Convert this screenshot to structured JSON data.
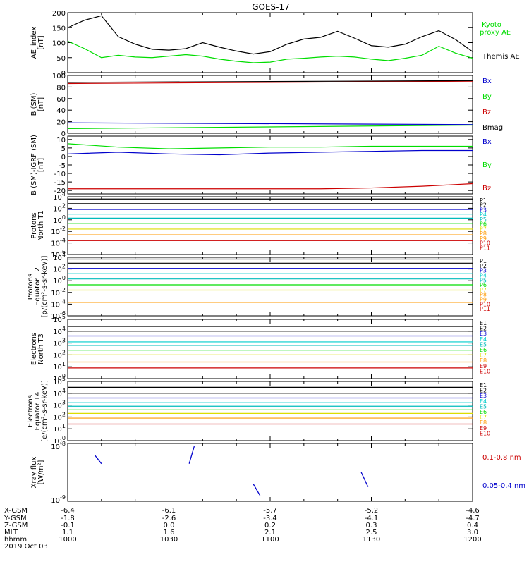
{
  "title": "GOES-17",
  "colors": {
    "black": "#000000",
    "green": "#00dd00",
    "blue": "#0000cc",
    "red": "#cc0000",
    "cyan": "#00bbbb",
    "teal": "#00cccc",
    "yellow": "#dddd00",
    "orange": "#ff9900"
  },
  "footer": {
    "rows": [
      "X-GSM",
      "Y-GSM",
      "Z-GSM",
      "MLT",
      "hhmm"
    ],
    "date": "2019 Oct 03",
    "columns": [
      {
        "X-GSM": "-6.4",
        "Y-GSM": "-1.8",
        "Z-GSM": "-0.1",
        "MLT": "1.1",
        "hhmm": "1000"
      },
      {
        "X-GSM": "-6.1",
        "Y-GSM": "-2.6",
        "Z-GSM": "0.0",
        "MLT": "1.6",
        "hhmm": "1030"
      },
      {
        "X-GSM": "-5.7",
        "Y-GSM": "-3.4",
        "Z-GSM": "0.2",
        "MLT": "2.1",
        "hhmm": "1100"
      },
      {
        "X-GSM": "-5.2",
        "Y-GSM": "-4.1",
        "Z-GSM": "0.3",
        "MLT": "2.5",
        "hhmm": "1130"
      },
      {
        "X-GSM": "-4.6",
        "Y-GSM": "-4.7",
        "Z-GSM": "0.4",
        "MLT": "3.0",
        "hhmm": "1200"
      }
    ]
  },
  "chart_data": [
    {
      "type": "line",
      "ylabel": [
        "AE_index",
        "[nT]"
      ],
      "ylim": [
        0,
        200
      ],
      "yticks": [
        0,
        50,
        100,
        150,
        200
      ],
      "x": [
        1000,
        1005,
        1010,
        1015,
        1020,
        1025,
        1030,
        1035,
        1040,
        1045,
        1050,
        1055,
        1100,
        1105,
        1110,
        1115,
        1120,
        1125,
        1130,
        1135,
        1140,
        1145,
        1150,
        1155,
        1200
      ],
      "series": [
        {
          "name": "Kyoto proxy AE",
          "color": "green",
          "values": [
            105,
            80,
            50,
            58,
            52,
            50,
            55,
            60,
            55,
            45,
            38,
            33,
            35,
            45,
            48,
            52,
            55,
            52,
            45,
            40,
            48,
            58,
            88,
            65,
            48
          ]
        },
        {
          "name": "Themis AE",
          "color": "black",
          "values": [
            150,
            175,
            190,
            120,
            95,
            78,
            75,
            80,
            100,
            85,
            72,
            62,
            70,
            95,
            112,
            118,
            138,
            115,
            90,
            85,
            95,
            120,
            140,
            110,
            70
          ]
        }
      ]
    },
    {
      "type": "line",
      "ylabel": [
        "B (SM)",
        "[nT]"
      ],
      "ylim": [
        0,
        100
      ],
      "yticks": [
        0,
        20,
        40,
        60,
        80,
        100
      ],
      "x": [
        1000,
        1200
      ],
      "series": [
        {
          "name": "Bx",
          "color": "blue",
          "values": [
            18,
            15
          ]
        },
        {
          "name": "By",
          "color": "green",
          "values": [
            8,
            14
          ]
        },
        {
          "name": "Bz",
          "color": "red",
          "values": [
            86,
            90
          ]
        },
        {
          "name": "Bmag",
          "color": "black",
          "values": [
            88,
            91
          ]
        }
      ]
    },
    {
      "type": "line",
      "ylabel": [
        "B (SM)-IGRF (SM)",
        "[nT]"
      ],
      "ylim": [
        -22,
        12
      ],
      "yticks": [
        -20,
        -15,
        -10,
        -5,
        0,
        5,
        10
      ],
      "x": [
        1000,
        1015,
        1030,
        1045,
        1100,
        1115,
        1130,
        1145,
        1200
      ],
      "series": [
        {
          "name": "Bx",
          "color": "blue",
          "values": [
            1.5,
            2.5,
            1.5,
            1.0,
            2.0,
            2.5,
            3.0,
            3.5,
            3.5
          ]
        },
        {
          "name": "By",
          "color": "green",
          "values": [
            7.5,
            5.5,
            4.5,
            5.0,
            5.5,
            5.5,
            6.0,
            6.0,
            6.0
          ]
        },
        {
          "name": "Bz",
          "color": "red",
          "values": [
            -19,
            -19,
            -19,
            -19,
            -19,
            -19,
            -18.5,
            -17.5,
            -16
          ]
        }
      ]
    },
    {
      "type": "line",
      "ylabel": [
        "Protons",
        "North T1"
      ],
      "log": true,
      "ylim": [
        -6,
        4
      ],
      "yticks": [
        -6,
        -4,
        -2,
        0,
        2,
        4
      ],
      "ticklabels": [
        "10^-6",
        "10^-4",
        "10^-2",
        "10^0",
        "10^2",
        "10^4"
      ],
      "legend": [
        "P1",
        "P2",
        "P3",
        "P4",
        "P5",
        "P6",
        "P7",
        "P8",
        "P9",
        "P10",
        "P11"
      ],
      "series_log10": [
        3.6,
        2.8,
        1.8,
        1.0,
        0.3,
        -0.6,
        -1.6,
        -2.6,
        -3.6
      ]
    },
    {
      "type": "line",
      "ylabel": [
        "Protons",
        "Equator T2",
        "[p/(cm²-s-sr-keV)]"
      ],
      "log": true,
      "ylim": [
        -6,
        4
      ],
      "yticks": [
        -6,
        -4,
        -2,
        0,
        2,
        4
      ],
      "ticklabels": [
        "10^-6",
        "10^-4",
        "10^-2",
        "10^0",
        "10^2",
        "10^4"
      ],
      "legend": [
        "P1",
        "P2",
        "P3",
        "P4",
        "P5",
        "P6",
        "P7",
        "P8",
        "P9",
        "P10",
        "P11"
      ],
      "series_log10": [
        3.7,
        3.0,
        2.1,
        1.2,
        0.3,
        -0.7,
        -1.6,
        -3.7
      ]
    },
    {
      "type": "line",
      "ylabel": [
        "Electrons",
        "North T3"
      ],
      "log": true,
      "ylim": [
        0,
        5
      ],
      "yticks": [
        0,
        1,
        2,
        3,
        4,
        5
      ],
      "ticklabels": [
        "10^0",
        "10^1",
        "10^2",
        "10^3",
        "10^4",
        "10^5"
      ],
      "legend": [
        "E1",
        "E2",
        "E3",
        "E4",
        "E5",
        "E6",
        "E7",
        "E8",
        "E9",
        "E10"
      ],
      "series_log10": [
        4.4,
        4.0,
        3.6,
        3.1,
        2.8,
        2.4,
        2.0,
        1.4,
        0.9
      ]
    },
    {
      "type": "line",
      "ylabel": [
        "Electrons",
        "Equator T4",
        "[e/(cm²-s-sr-keV)]"
      ],
      "log": true,
      "ylim": [
        0,
        5
      ],
      "yticks": [
        0,
        1,
        2,
        3,
        4,
        5
      ],
      "ticklabels": [
        "10^0",
        "10^1",
        "10^2",
        "10^3",
        "10^4",
        "10^5"
      ],
      "legend": [
        "E1",
        "E2",
        "E3",
        "E4",
        "E5",
        "E6",
        "E7",
        "E8",
        "E9",
        "E10"
      ],
      "series_log10": [
        4.5,
        4.0,
        3.6,
        3.2,
        2.9,
        2.6,
        2.3,
        1.9,
        1.4
      ]
    },
    {
      "type": "line",
      "ylabel": [
        "Xray flux",
        "[W/m²]"
      ],
      "log": true,
      "ylim": [
        -9,
        -8
      ],
      "ticklabels": [
        "10^-8",
        "10^-9"
      ],
      "legend": [
        "0.1-0.8 nm",
        "0.05-0.4 nm"
      ],
      "segments": [
        {
          "x": [
            1008,
            1010
          ],
          "y": [
            -8.2,
            -8.35
          ]
        },
        {
          "x": [
            1036,
            1037.5
          ],
          "y": [
            -8.35,
            -8.05
          ]
        },
        {
          "x": [
            1055,
            1057
          ],
          "y": [
            -8.7,
            -8.9
          ]
        },
        {
          "x": [
            1127,
            1129
          ],
          "y": [
            -8.5,
            -8.75
          ]
        }
      ]
    }
  ]
}
